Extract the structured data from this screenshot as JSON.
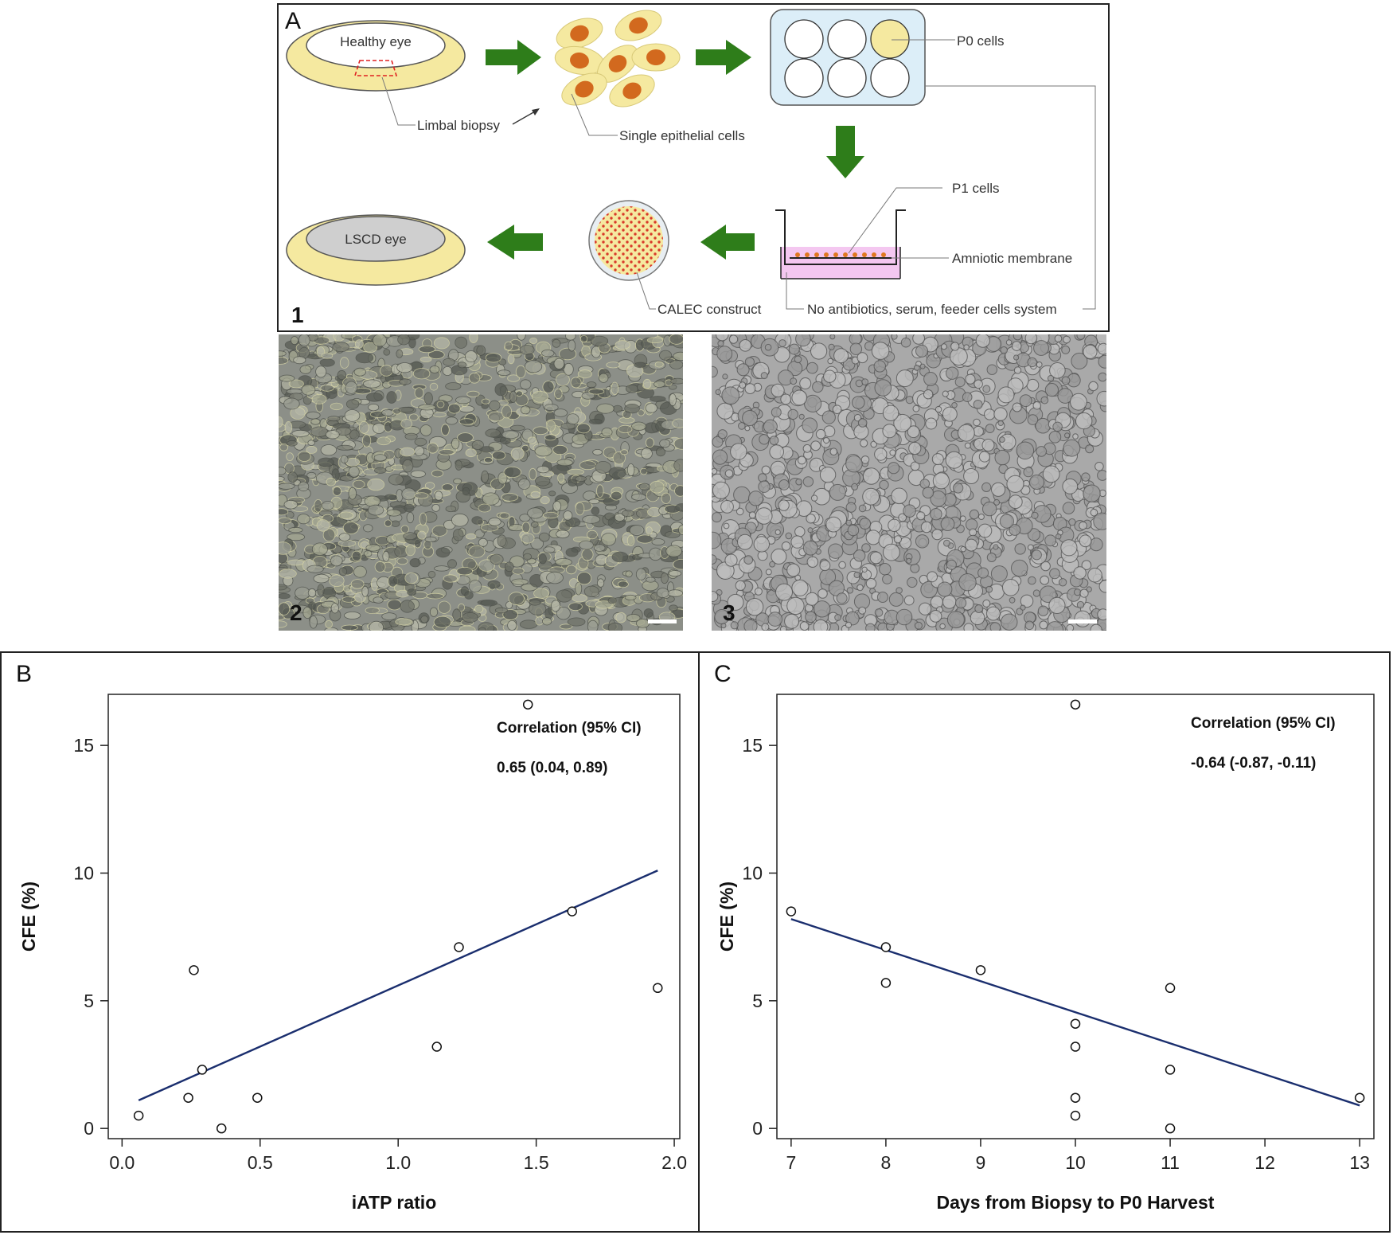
{
  "panel_a": {
    "letter": "A",
    "sub_1": "1",
    "sub_2": "2",
    "sub_3": "3",
    "labels": {
      "healthy_eye": "Healthy eye",
      "limbal_biopsy": "Limbal biopsy",
      "single_cells": "Single epithelial cells",
      "p0_cells": "P0 cells",
      "p1_cells": "P1 cells",
      "amniotic_membrane": "Amniotic membrane",
      "no_antibiotics": "No antibiotics, serum, feeder cells system",
      "calec_construct": "CALEC construct",
      "lscd_eye": "LSCD eye"
    },
    "colors": {
      "arrow_green": "#2e7d1a",
      "eye_yellow": "#f5e9a0",
      "cell_orange": "#d2691e",
      "plate_blue": "#dceef8",
      "medium_pink": "#f4c7f0"
    }
  },
  "panel_b": {
    "letter": "B"
  },
  "panel_c": {
    "letter": "C"
  },
  "chart_data": [
    {
      "type": "scatter",
      "panel": "B",
      "xlabel": "iATP ratio",
      "ylabel": "CFE (%)",
      "xlim": [
        -0.05,
        2.02
      ],
      "ylim": [
        -0.4,
        17.0
      ],
      "xticks": [
        0.0,
        0.5,
        1.0,
        1.5,
        2.0
      ],
      "xtick_labels": [
        "0.0",
        "0.5",
        "1.0",
        "1.5",
        "2.0"
      ],
      "yticks": [
        0,
        5,
        10,
        15
      ],
      "ytick_labels": [
        "0",
        "5",
        "10",
        "15"
      ],
      "x": [
        0.06,
        0.24,
        0.26,
        0.29,
        0.36,
        0.49,
        1.14,
        1.22,
        1.47,
        1.63,
        1.94
      ],
      "y": [
        0.5,
        1.2,
        6.2,
        2.3,
        0.0,
        1.2,
        3.2,
        7.1,
        16.6,
        8.5,
        5.5
      ],
      "fit_line": {
        "x": [
          0.06,
          1.94
        ],
        "y": [
          1.1,
          10.1
        ]
      },
      "annotation_title": "Correlation (95% CI)",
      "annotation_value": "0.65 (0.04, 0.89)",
      "line_color": "#1a2e6e",
      "grid": false
    },
    {
      "type": "scatter",
      "panel": "C",
      "xlabel": "Days from Biopsy to P0 Harvest",
      "ylabel": "CFE (%)",
      "xlim": [
        6.85,
        13.15
      ],
      "ylim": [
        -0.4,
        17.0
      ],
      "xticks": [
        7,
        8,
        9,
        10,
        11,
        12,
        13
      ],
      "xtick_labels": [
        "7",
        "8",
        "9",
        "10",
        "11",
        "12",
        "13"
      ],
      "yticks": [
        0,
        5,
        10,
        15
      ],
      "ytick_labels": [
        "0",
        "5",
        "10",
        "15"
      ],
      "x": [
        7,
        8,
        8,
        9,
        10,
        10,
        10,
        10,
        10,
        11,
        11,
        11,
        13
      ],
      "y": [
        8.5,
        7.1,
        5.7,
        6.2,
        16.6,
        4.1,
        3.2,
        1.2,
        0.5,
        5.5,
        2.3,
        0.0,
        1.2
      ],
      "fit_line": {
        "x": [
          7,
          13
        ],
        "y": [
          8.2,
          0.9
        ]
      },
      "annotation_title": "Correlation (95% CI)",
      "annotation_value": "-0.64 (-0.87, -0.11)",
      "line_color": "#1a2e6e",
      "grid": false
    }
  ]
}
